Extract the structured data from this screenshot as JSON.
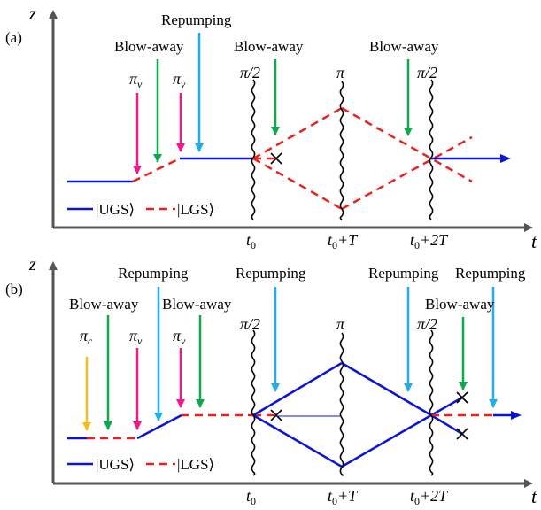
{
  "colors": {
    "ugs": "#0a14d8",
    "lgs": "#e8221c",
    "pi_v": "#ee1a8a",
    "pi_c": "#f5bc1a",
    "blowaway": "#0fa84d",
    "repump": "#20aeea",
    "axis": "#555555"
  },
  "panel_a": {
    "label": "(a)",
    "z": "z",
    "t": "t",
    "pulse_piv_1": "π",
    "pulse_piv_2": "π",
    "blow_away_1": "Blow-away",
    "repumping_1": "Repumping",
    "pi_half_1": "π/2",
    "blow_away_2": "Blow-away",
    "pi": "π",
    "pi_half_2": "π/2",
    "blow_away_3": "Blow-away",
    "t0_main": "t",
    "t0_sub": "0",
    "t0T_main": "t",
    "t0T_sub": "0",
    "t0T_rest": "+T",
    "t02T_main": "t",
    "t02T_sub": "0",
    "t02T_rest": "+2T",
    "legend_ugs": "|UGS⟩",
    "legend_lgs": "|LGS⟩"
  },
  "panel_b": {
    "label": "(b)",
    "z": "z",
    "t": "t",
    "pulse_pic": "π",
    "pulse_piv_1": "π",
    "pulse_piv_2": "π",
    "blow_away_1": "Blow-away",
    "repumping_1": "Repumping",
    "blow_away_2": "Blow-away",
    "pi_half_1": "π/2",
    "repumping_2": "Repumping",
    "pi": "π",
    "repumping_3": "Repumping",
    "pi_half_2": "π/2",
    "blow_away_3": "Blow-away",
    "repumping_4": "Repumping",
    "t0_main": "t",
    "t0_sub": "0",
    "t0T_main": "t",
    "t0T_sub": "0",
    "t0T_rest": "+T",
    "t02T_main": "t",
    "t02T_sub": "0",
    "t02T_rest": "+2T",
    "legend_ugs": "|UGS⟩",
    "legend_lgs": "|LGS⟩",
    "sub_v": "v",
    "sub_c": "c"
  }
}
